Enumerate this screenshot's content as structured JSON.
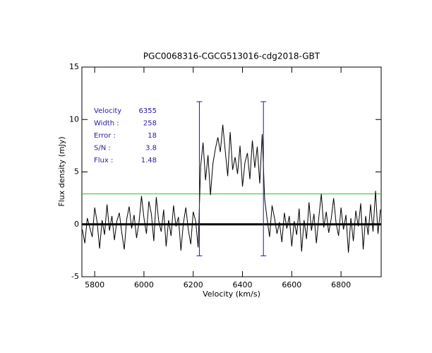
{
  "chart_data": {
    "type": "line",
    "title": "PGC0068316-CGCG513016-cdg2018-GBT",
    "x_label": "Velocity (km/s)",
    "y_label": "Flux density (mJy)",
    "color": "#000000",
    "xlim": [
      5748,
      6963
    ],
    "ylim": [
      -5,
      15
    ],
    "xticks": [
      5800,
      6000,
      6200,
      6400,
      6600,
      6800
    ],
    "yticks": [
      -5,
      0,
      5,
      10,
      15
    ],
    "x": [
      5750,
      5760,
      5770,
      5780,
      5790,
      5800,
      5810,
      5820,
      5830,
      5840,
      5850,
      5860,
      5870,
      5880,
      5890,
      5900,
      5910,
      5920,
      5930,
      5940,
      5950,
      5960,
      5970,
      5980,
      5990,
      6000,
      6010,
      6020,
      6030,
      6040,
      6050,
      6060,
      6070,
      6080,
      6090,
      6100,
      6110,
      6120,
      6130,
      6140,
      6150,
      6160,
      6170,
      6180,
      6190,
      6200,
      6210,
      6220,
      6230,
      6240,
      6250,
      6260,
      6270,
      6280,
      6290,
      6300,
      6310,
      6320,
      6330,
      6340,
      6350,
      6360,
      6370,
      6380,
      6390,
      6400,
      6410,
      6420,
      6430,
      6440,
      6450,
      6460,
      6470,
      6480,
      6490,
      6500,
      6510,
      6520,
      6530,
      6540,
      6550,
      6560,
      6570,
      6580,
      6590,
      6600,
      6610,
      6620,
      6630,
      6640,
      6650,
      6660,
      6670,
      6680,
      6690,
      6700,
      6710,
      6720,
      6730,
      6740,
      6750,
      6760,
      6770,
      6780,
      6790,
      6800,
      6810,
      6820,
      6830,
      6840,
      6850,
      6860,
      6870,
      6880,
      6890,
      6900,
      6910,
      6920,
      6930,
      6940,
      6950,
      6960
    ],
    "values": [
      -0.5,
      -1.8,
      0.6,
      -0.3,
      -1.2,
      1.6,
      0.2,
      -2.3,
      0.4,
      -1.0,
      1.9,
      -0.6,
      0.8,
      -1.5,
      0.3,
      1.1,
      -0.8,
      -2.4,
      0.5,
      1.7,
      -0.4,
      0.9,
      -1.3,
      0.2,
      2.7,
      0.6,
      -0.9,
      2.2,
      1.0,
      -1.6,
      2.6,
      0.3,
      -0.7,
      1.4,
      -2.1,
      0.4,
      -1.1,
      1.8,
      -0.2,
      0.7,
      -2.5,
      0.1,
      1.6,
      -0.5,
      -1.9,
      1.2,
      0.3,
      -2.2,
      5.5,
      7.8,
      4.2,
      6.6,
      2.8,
      5.8,
      7.2,
      8.3,
      6.9,
      9.5,
      7.0,
      4.6,
      8.8,
      5.2,
      6.4,
      4.8,
      7.5,
      3.6,
      5.9,
      6.8,
      4.3,
      8.0,
      5.4,
      7.4,
      3.9,
      8.6,
      2.4,
      0.5,
      -1.2,
      1.8,
      0.6,
      -0.9,
      0.2,
      -1.7,
      1.1,
      -0.4,
      0.8,
      -2.1,
      0.3,
      -1.0,
      1.5,
      -2.6,
      0.4,
      -1.4,
      2.1,
      -0.6,
      1.0,
      -1.8,
      0.7,
      2.9,
      -0.3,
      1.2,
      -0.8,
      0.5,
      2.5,
      0.1,
      -1.1,
      1.6,
      -0.5,
      0.9,
      -2.7,
      0.6,
      -1.6,
      1.3,
      -0.2,
      2.0,
      -2.4,
      0.8,
      -1.0,
      1.9,
      -0.7,
      3.2,
      -0.9,
      1.4
    ],
    "vlines": [
      {
        "x": 6225,
        "ymin": -3,
        "ymax": 11.7,
        "color": "#1a1aa8"
      },
      {
        "x": 6485,
        "ymin": -3,
        "ymax": 11.7,
        "color": "#1a1aa8"
      }
    ],
    "hlines": [
      {
        "y": 2.9,
        "color": "#22cc22",
        "width": 1
      },
      {
        "y": 0,
        "color": "#000000",
        "width": 3
      }
    ],
    "annotation_color": "#2a1aa0",
    "annotations": [
      {
        "label": "Velocity",
        "value": 6355
      },
      {
        "label": "Width :",
        "value": 258
      },
      {
        "label": "Error :",
        "value": 18
      },
      {
        "label": "S/N :",
        "value": 3.8
      },
      {
        "label": "Flux :",
        "value": 1.48
      }
    ]
  }
}
